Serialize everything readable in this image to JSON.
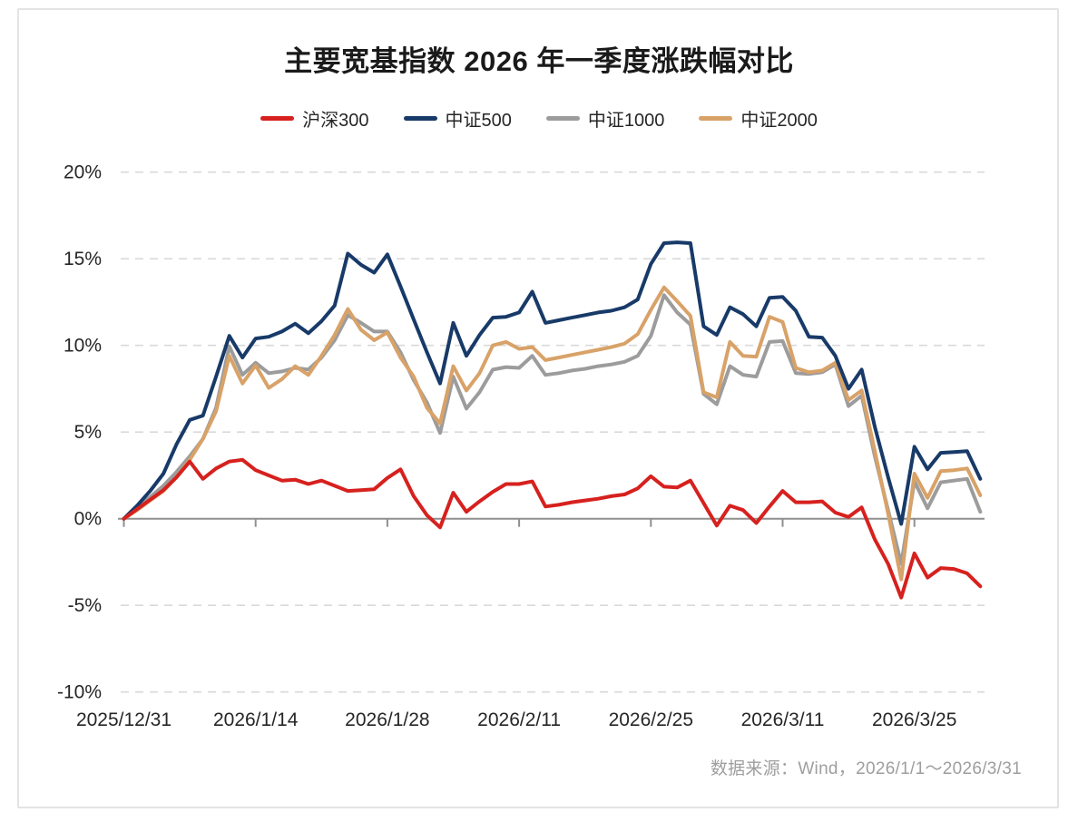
{
  "title": "主要宽基指数 2026 年一季度涨跌幅对比",
  "footer": {
    "source_note": "数据来源：Wind，2026/1/1～2026/3/31"
  },
  "colors": {
    "grid": "#D9D9D9",
    "zero_axis": "#8F8F8F",
    "axis_text": "#262626",
    "title_text": "#1A1A1A",
    "footer_text": "#9E9E9E"
  },
  "chart_data": {
    "type": "line",
    "title": "主要宽基指数 2026 年一季度涨跌幅对比",
    "xlabel": "",
    "ylabel": "",
    "ylim": [
      -10,
      20
    ],
    "y_ticks": [
      20,
      15,
      10,
      5,
      0,
      -5,
      -10
    ],
    "y_tick_labels": [
      "20%",
      "15%",
      "10%",
      "5%",
      "0%",
      "-5%",
      "-10%"
    ],
    "x_tick_positions": [
      0,
      10,
      20,
      30,
      40,
      50,
      60
    ],
    "x_tick_labels": [
      "2025/12/31",
      "2026/1/14",
      "2026/1/28",
      "2026/2/11",
      "2026/2/25",
      "2026/3/11",
      "2026/3/25"
    ],
    "x_point_count": 66,
    "grid": "horizontal dashed",
    "legend_position": "top center",
    "series": [
      {
        "name": "沪深300",
        "color": "#D6211E",
        "values": [
          0,
          0.55,
          1.1,
          1.65,
          2.4,
          3.3,
          2.3,
          2.9,
          3.3,
          3.4,
          2.8,
          2.5,
          2.2,
          2.25,
          2.0,
          2.2,
          1.9,
          1.6,
          1.65,
          1.7,
          2.35,
          2.85,
          1.3,
          0.2,
          -0.5,
          1.5,
          0.4,
          1.0,
          1.55,
          2.0,
          2.0,
          2.15,
          0.7,
          0.8,
          0.95,
          1.05,
          1.15,
          1.3,
          1.4,
          1.75,
          2.45,
          1.85,
          1.8,
          2.2,
          0.9,
          -0.4,
          0.75,
          0.5,
          -0.25,
          0.7,
          1.6,
          0.95,
          0.95,
          1.0,
          0.35,
          0.1,
          0.65,
          -1.2,
          -2.6,
          -4.55,
          -2.0,
          -3.4,
          -2.85,
          -2.9,
          -3.15,
          -3.9
        ]
      },
      {
        "name": "中证500",
        "color": "#183A68",
        "values": [
          0,
          0.75,
          1.6,
          2.6,
          4.3,
          5.7,
          5.95,
          8.2,
          10.55,
          9.3,
          10.4,
          10.5,
          10.8,
          11.25,
          10.7,
          11.4,
          12.3,
          15.3,
          14.65,
          14.2,
          15.25,
          13.4,
          11.5,
          9.6,
          7.8,
          11.3,
          9.4,
          10.6,
          11.6,
          11.65,
          11.9,
          13.1,
          11.3,
          11.45,
          11.6,
          11.75,
          11.9,
          12.0,
          12.2,
          12.65,
          14.7,
          15.9,
          15.95,
          15.9,
          11.1,
          10.6,
          12.2,
          11.8,
          11.1,
          12.75,
          12.8,
          12.0,
          10.5,
          10.45,
          9.4,
          7.5,
          8.6,
          5.3,
          2.4,
          -0.3,
          4.15,
          2.85,
          3.8,
          3.85,
          3.9,
          2.3
        ]
      },
      {
        "name": "中证1000",
        "color": "#9C9C9C",
        "values": [
          0,
          0.6,
          1.25,
          1.9,
          2.7,
          3.6,
          4.6,
          6.4,
          9.95,
          8.3,
          9.0,
          8.4,
          8.5,
          8.7,
          8.6,
          9.3,
          10.3,
          11.75,
          11.3,
          10.8,
          10.8,
          9.6,
          8.0,
          6.7,
          4.95,
          8.2,
          6.35,
          7.3,
          8.6,
          8.75,
          8.7,
          9.4,
          8.3,
          8.4,
          8.55,
          8.65,
          8.8,
          8.9,
          9.05,
          9.4,
          10.55,
          12.9,
          11.9,
          11.2,
          7.2,
          6.6,
          8.8,
          8.3,
          8.2,
          10.2,
          10.25,
          8.4,
          8.35,
          8.45,
          8.9,
          6.5,
          7.1,
          3.6,
          0.5,
          -2.6,
          2.15,
          0.6,
          2.1,
          2.2,
          2.3,
          0.4
        ]
      },
      {
        "name": "中证2000",
        "color": "#D8A268",
        "values": [
          0,
          0.5,
          1.05,
          1.6,
          2.4,
          3.4,
          4.6,
          6.2,
          9.4,
          7.8,
          8.85,
          7.55,
          8.05,
          8.8,
          8.3,
          9.4,
          10.6,
          12.1,
          10.9,
          10.3,
          10.75,
          9.3,
          8.2,
          6.4,
          5.5,
          8.8,
          7.4,
          8.4,
          10.0,
          10.2,
          9.8,
          9.9,
          9.15,
          9.3,
          9.45,
          9.6,
          9.75,
          9.9,
          10.1,
          10.65,
          12.05,
          13.35,
          12.55,
          11.7,
          7.3,
          7.0,
          10.2,
          9.4,
          9.35,
          11.65,
          11.35,
          8.7,
          8.45,
          8.55,
          9.0,
          6.85,
          7.4,
          3.9,
          0.3,
          -3.5,
          2.6,
          1.2,
          2.75,
          2.8,
          2.9,
          1.35
        ]
      }
    ]
  }
}
